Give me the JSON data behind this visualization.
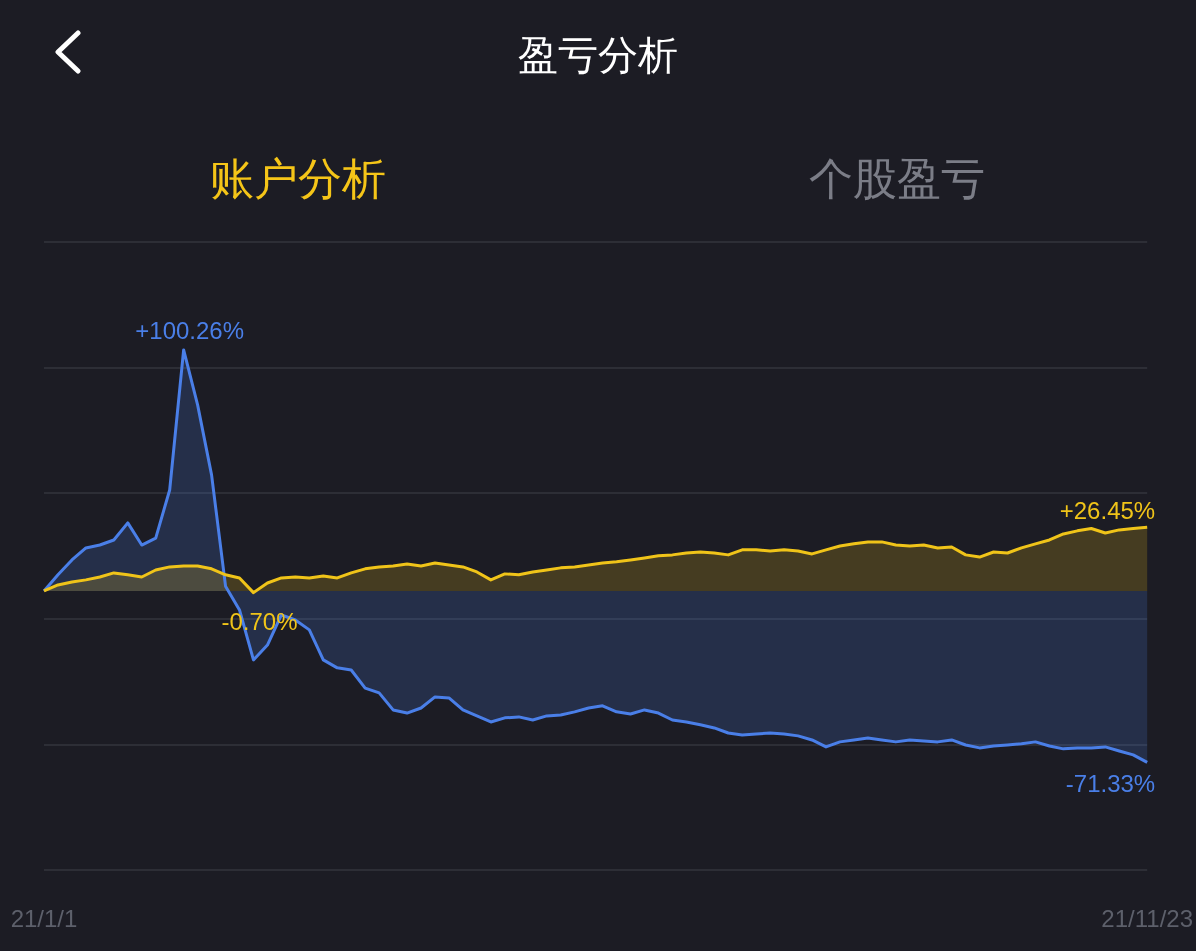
{
  "chart_data": {
    "type": "area",
    "title": "盈亏分析",
    "annotations": [
      "账户分析",
      "个股盈亏"
    ],
    "categories": [
      "21/1/1",
      null,
      null,
      null,
      null,
      null,
      null,
      null,
      null,
      null,
      null,
      null,
      null,
      null,
      null,
      null,
      null,
      null,
      null,
      null,
      null,
      null,
      null,
      null,
      null,
      null,
      null,
      null,
      null,
      null,
      null,
      null,
      null,
      null,
      null,
      null,
      null,
      null,
      null,
      null,
      null,
      null,
      null,
      null,
      null,
      null,
      null,
      null,
      null,
      null,
      null,
      null,
      null,
      null,
      null,
      null,
      null,
      null,
      null,
      null,
      null,
      null,
      null,
      null,
      null,
      null,
      null,
      null,
      null,
      null,
      null,
      null,
      null,
      null,
      null,
      null,
      null,
      null,
      null,
      "21/11/23"
    ],
    "series": [
      {
        "color": "#4a7fe8",
        "values": [
          0,
          6.7,
          12.9,
          17.9,
          19.1,
          21.2,
          28.3,
          19.1,
          22.0,
          42.0,
          100.26,
          77.4,
          48.3,
          2,
          -7.9,
          -28.7,
          -22.5,
          -10.0,
          -12.1,
          -16.2,
          -28.7,
          -32.0,
          -32.9,
          -40.4,
          -42.4,
          -49.5,
          -50.8,
          -48.7,
          -44.1,
          -44.5,
          -49.5,
          -52.0,
          -54.5,
          -52.8,
          -52.4,
          -53.7,
          -52.0,
          -51.6,
          -50.3,
          -48.7,
          -47.8,
          -50.3,
          -51.2,
          -49.5,
          -50.8,
          -53.7,
          -54.5,
          -55.7,
          -57.0,
          -59.1,
          -59.9,
          -59.5,
          -59.1,
          -59.5,
          -60.3,
          -62.0,
          -64.9,
          -62.8,
          -62.0,
          -61.2,
          -62.0,
          -62.8,
          -62.0,
          -62.4,
          -62.8,
          -62.0,
          -64.1,
          -65.3,
          -64.5,
          -64.1,
          -63.6,
          -62.8,
          -64.5,
          -65.7,
          -65.3,
          -65.3,
          -64.9,
          -66.6,
          -68.2,
          -71.33
        ],
        "value_labels": [
          null,
          null,
          null,
          null,
          null,
          null,
          null,
          null,
          null,
          null,
          "+100.26%",
          null,
          null,
          null,
          null,
          null,
          null,
          null,
          null,
          null,
          null,
          null,
          null,
          null,
          null,
          null,
          null,
          null,
          null,
          null,
          null,
          null,
          null,
          null,
          null,
          null,
          null,
          null,
          null,
          null,
          null,
          null,
          null,
          null,
          null,
          null,
          null,
          null,
          null,
          null,
          null,
          null,
          null,
          null,
          null,
          null,
          null,
          null,
          null,
          null,
          null,
          null,
          null,
          null,
          null,
          null,
          null,
          null,
          null,
          null,
          null,
          null,
          null,
          null,
          null,
          null,
          null,
          null,
          null,
          "-71.33%"
        ]
      },
      {
        "color": "#f0c419",
        "values": [
          0,
          2.5,
          3.7,
          4.6,
          5.8,
          7.5,
          6.7,
          5.8,
          8.7,
          10.0,
          10.4,
          10.4,
          9.2,
          6.7,
          5.4,
          -0.7,
          3.3,
          5.4,
          5.8,
          5.4,
          6.2,
          5.4,
          7.5,
          9.2,
          10.0,
          10.4,
          11.2,
          10.4,
          11.6,
          10.8,
          10.0,
          7.9,
          4.6,
          7.1,
          6.7,
          7.9,
          8.7,
          9.6,
          10.0,
          10.8,
          11.6,
          12.1,
          12.9,
          13.7,
          14.6,
          15.0,
          15.8,
          16.2,
          15.8,
          15.0,
          17.1,
          17.1,
          16.6,
          17.1,
          16.6,
          15.4,
          17.1,
          18.7,
          19.6,
          20.4,
          20.4,
          19.1,
          18.7,
          19.1,
          17.9,
          18.3,
          15.0,
          14.1,
          16.2,
          15.8,
          17.9,
          19.6,
          21.2,
          23.7,
          25.0,
          26.0,
          24.1,
          25.4,
          26.0,
          26.45
        ],
        "value_labels": [
          null,
          null,
          null,
          null,
          null,
          null,
          null,
          null,
          null,
          null,
          null,
          null,
          null,
          null,
          null,
          "-0.70%",
          null,
          null,
          null,
          null,
          null,
          null,
          null,
          null,
          null,
          null,
          null,
          null,
          null,
          null,
          null,
          null,
          null,
          null,
          null,
          null,
          null,
          null,
          null,
          null,
          null,
          null,
          null,
          null,
          null,
          null,
          null,
          null,
          null,
          null,
          null,
          null,
          null,
          null,
          null,
          null,
          null,
          null,
          null,
          null,
          null,
          null,
          null,
          null,
          null,
          null,
          null,
          null,
          null,
          null,
          null,
          null,
          null,
          null,
          null,
          null,
          null,
          null,
          null,
          "+26.45%"
        ]
      }
    ],
    "grid": "y"
  }
}
